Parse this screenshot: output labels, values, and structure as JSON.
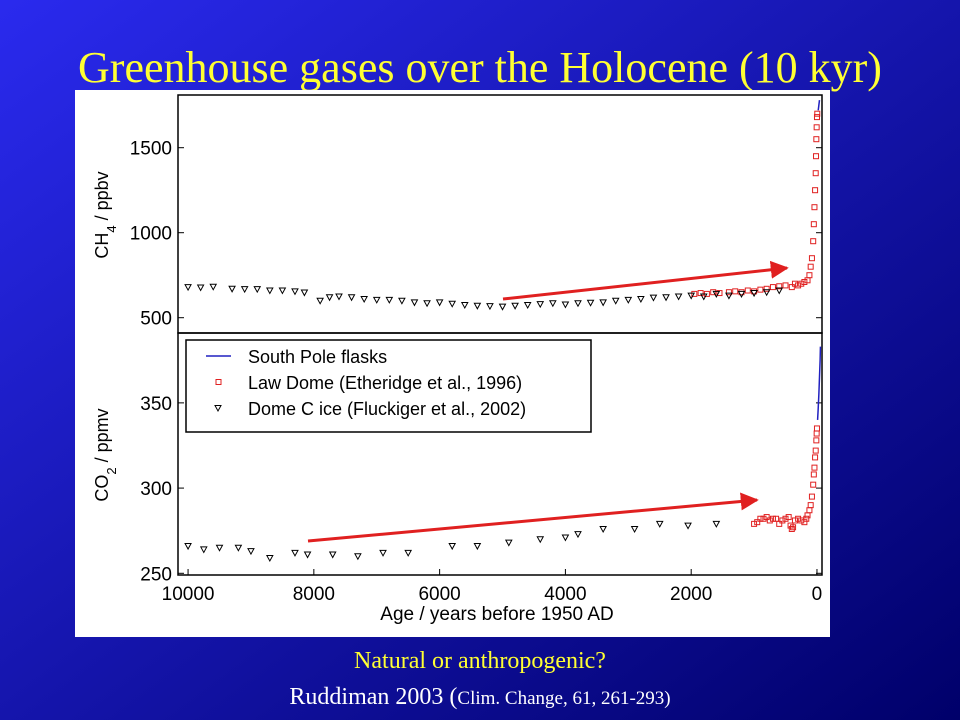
{
  "title": "Greenhouse gases over the Holocene (10 kyr)",
  "xlabel": "Age / years before 1950 AD",
  "legend": "upper left",
  "footer": {
    "line1": "Natural or anthropogenic?",
    "line2_main": "Ruddiman 2003 (",
    "line2_small": "Clim. Change, 61, 261-293)"
  },
  "chart_data": [
    {
      "type": "scatter",
      "ylabel": [
        "CH",
        "4",
        " / ppbv"
      ],
      "xlim": [
        10160,
        -80
      ],
      "ylim": [
        410,
        1810
      ],
      "yticks": [
        500,
        1000,
        1500
      ],
      "series": [
        {
          "name": "South Pole flasks",
          "color": "#2020c0",
          "style": "line",
          "x": [
            -20,
            -30,
            -40
          ],
          "values": [
            1720,
            1750,
            1780
          ]
        },
        {
          "name": "Law Dome (Etheridge et al., 1996)",
          "color": "#e02020",
          "style": "square",
          "x": [
            1950,
            1850,
            1750,
            1650,
            1550,
            1400,
            1300,
            1200,
            1100,
            1000,
            900,
            800,
            700,
            600,
            500,
            400,
            350,
            300,
            250,
            200,
            150,
            120,
            100,
            80,
            60,
            50,
            40,
            30,
            20,
            15,
            10,
            5,
            0,
            -5
          ],
          "values": [
            640,
            645,
            640,
            650,
            645,
            650,
            655,
            650,
            660,
            655,
            665,
            670,
            680,
            685,
            690,
            680,
            700,
            690,
            700,
            710,
            720,
            750,
            800,
            850,
            950,
            1050,
            1150,
            1250,
            1350,
            1450,
            1550,
            1620,
            1680,
            1700
          ]
        },
        {
          "name": "Dome C ice (Fluckiger et al., 2002)",
          "color": "#000000",
          "style": "triangle",
          "x": [
            10000,
            9800,
            9600,
            9300,
            9100,
            8900,
            8700,
            8500,
            8300,
            8150,
            7900,
            7750,
            7600,
            7400,
            7200,
            7000,
            6800,
            6600,
            6400,
            6200,
            6000,
            5800,
            5600,
            5400,
            5200,
            5000,
            4800,
            4600,
            4400,
            4200,
            4000,
            3800,
            3600,
            3400,
            3200,
            3000,
            2800,
            2600,
            2400,
            2200,
            2000,
            1800,
            1600,
            1400,
            1200,
            1000,
            800,
            600
          ],
          "values": [
            680,
            678,
            682,
            670,
            668,
            668,
            660,
            660,
            655,
            648,
            600,
            620,
            625,
            620,
            610,
            605,
            605,
            600,
            590,
            585,
            590,
            582,
            575,
            570,
            568,
            565,
            570,
            575,
            580,
            585,
            578,
            585,
            588,
            590,
            600,
            605,
            610,
            618,
            620,
            625,
            630,
            625,
            640,
            630,
            640,
            645,
            650,
            660
          ]
        }
      ]
    },
    {
      "type": "scatter",
      "ylabel": [
        "CO",
        "2",
        " / ppmv"
      ],
      "xlim": [
        10160,
        -80
      ],
      "ylim": [
        249,
        391
      ],
      "yticks": [
        250,
        300,
        350
      ],
      "xticks": [
        10000,
        8000,
        6000,
        4000,
        2000,
        0
      ],
      "series": [
        {
          "name": "South Pole flasks",
          "color": "#2020c0",
          "style": "line",
          "x": [
            -10,
            -20,
            -30,
            -40,
            -50,
            -55
          ],
          "values": [
            340,
            347,
            355,
            365,
            375,
            383
          ]
        },
        {
          "name": "Law Dome (Etheridge et al., 1996)",
          "color": "#e02020",
          "style": "square",
          "x": [
            1000,
            950,
            900,
            850,
            800,
            750,
            700,
            650,
            600,
            550,
            500,
            450,
            420,
            400,
            380,
            350,
            300,
            250,
            200,
            170,
            150,
            120,
            100,
            80,
            60,
            50,
            40,
            30,
            20,
            10,
            5,
            0
          ],
          "values": [
            279,
            280,
            282,
            282,
            283,
            281,
            282,
            282,
            279,
            281,
            282,
            283,
            278,
            276,
            277,
            281,
            282,
            281,
            280,
            282,
            284,
            287,
            290,
            295,
            302,
            308,
            312,
            318,
            322,
            328,
            332,
            335
          ]
        },
        {
          "name": "Dome C ice (Fluckiger et al., 2002)",
          "color": "#000000",
          "style": "triangle",
          "x": [
            10000,
            9750,
            9500,
            9200,
            9000,
            8700,
            8300,
            8100,
            7700,
            7300,
            6900,
            6500,
            5800,
            5400,
            4900,
            4400,
            4000,
            3800,
            3400,
            2900,
            2500,
            2050,
            1600
          ],
          "values": [
            266,
            264,
            265,
            265,
            263,
            259,
            262,
            261,
            261,
            260,
            262,
            262,
            266,
            266,
            268,
            270,
            271,
            273,
            276,
            276,
            279,
            278,
            279
          ]
        }
      ]
    }
  ]
}
